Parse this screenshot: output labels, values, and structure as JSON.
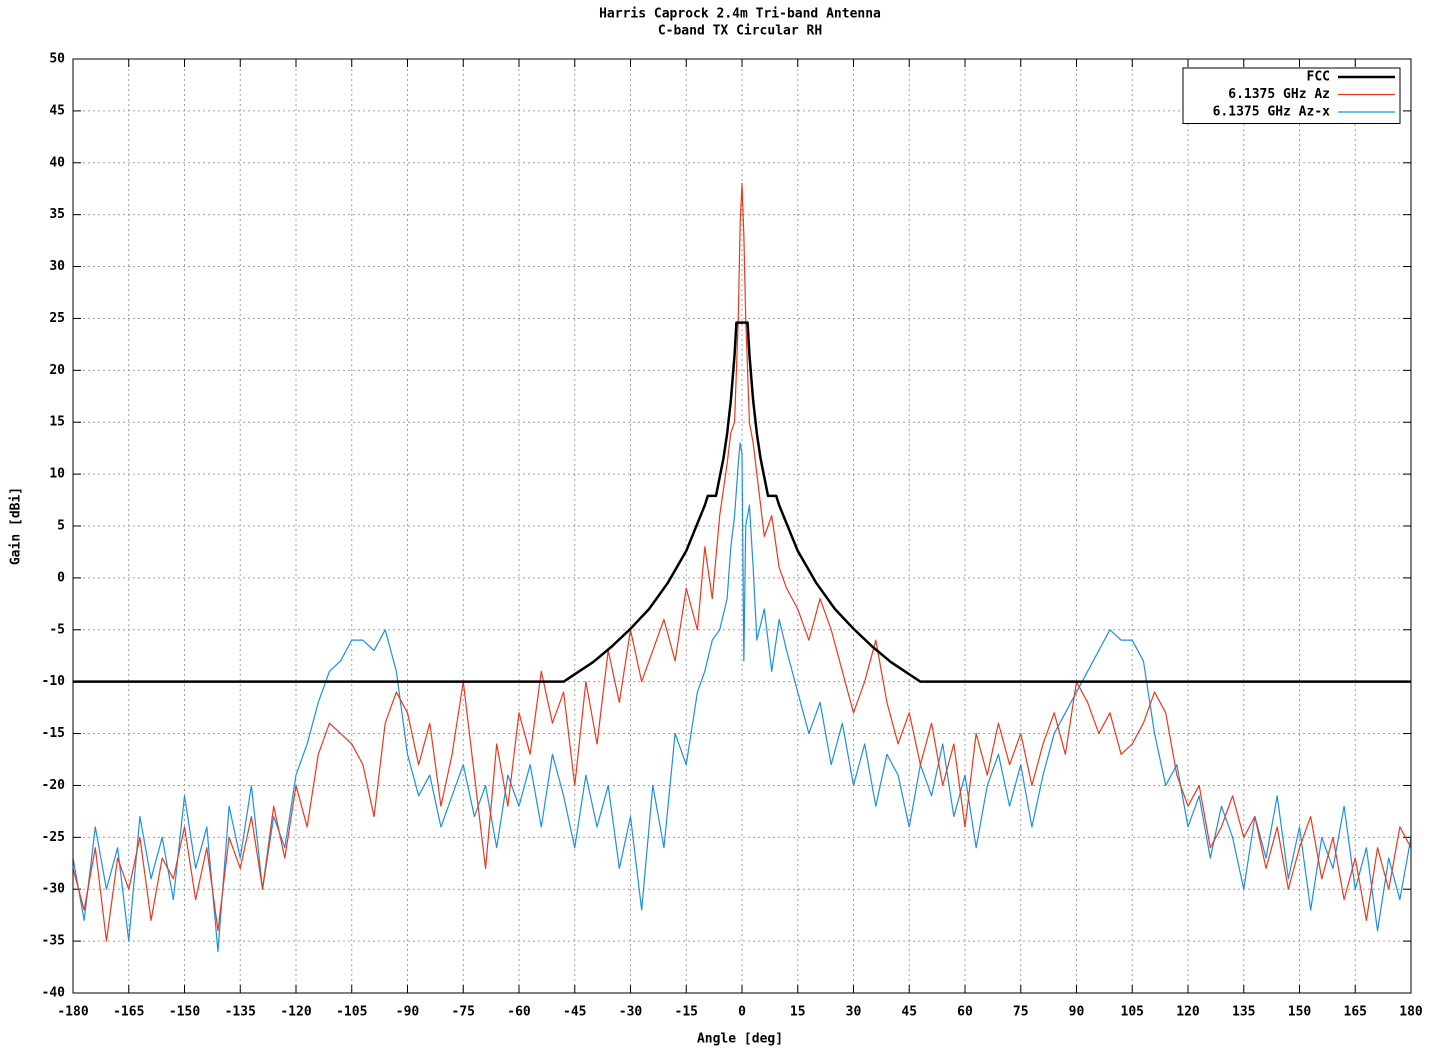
{
  "chart_data": {
    "type": "line",
    "title": "Harris Caprock 2.4m Tri-band Antenna",
    "subtitle": "C-band TX Circular RH",
    "x_label": "Angle [deg]",
    "y_label": "Gain [dBi]",
    "xlim": [
      -180,
      180
    ],
    "ylim": [
      -40,
      50
    ],
    "xticks": [
      -180,
      -165,
      -150,
      -135,
      -120,
      -105,
      -90,
      -75,
      -60,
      -45,
      -30,
      -15,
      0,
      15,
      30,
      45,
      60,
      75,
      90,
      105,
      120,
      135,
      150,
      165,
      180
    ],
    "yticks": [
      -40,
      -35,
      -30,
      -25,
      -20,
      -15,
      -10,
      -5,
      0,
      5,
      10,
      15,
      20,
      25,
      30,
      35,
      40,
      45,
      50
    ],
    "grid": true,
    "legend": "top-right",
    "x": [
      -180,
      -177,
      -174,
      -171,
      -168,
      -165,
      -162,
      -159,
      -156,
      -153,
      -150,
      -147,
      -144,
      -141,
      -138,
      -135,
      -132,
      -129,
      -126,
      -123,
      -120,
      -117,
      -114,
      -111,
      -108,
      -105,
      -102,
      -99,
      -96,
      -93,
      -90,
      -87,
      -84,
      -81,
      -78,
      -75,
      -72,
      -69,
      -66,
      -63,
      -60,
      -57,
      -54,
      -51,
      -48,
      -45,
      -42,
      -39,
      -36,
      -33,
      -30,
      -27,
      -24,
      -21,
      -18,
      -15,
      -12,
      -10,
      -8,
      -6,
      -4,
      -3,
      -2,
      -1,
      -0.5,
      0,
      0.5,
      1,
      2,
      3,
      4,
      6,
      8,
      10,
      12,
      15,
      18,
      21,
      24,
      27,
      30,
      33,
      36,
      39,
      42,
      45,
      48,
      51,
      54,
      57,
      60,
      63,
      66,
      69,
      72,
      75,
      78,
      81,
      84,
      87,
      90,
      93,
      96,
      99,
      102,
      105,
      108,
      111,
      114,
      117,
      120,
      123,
      126,
      129,
      132,
      135,
      138,
      141,
      144,
      147,
      150,
      153,
      156,
      159,
      162,
      165,
      168,
      171,
      174,
      177,
      180
    ],
    "series": [
      {
        "name": "FCC",
        "color": "#000000",
        "width": 2.5,
        "x": [
          -180,
          -48,
          -40,
          -35,
          -30,
          -25,
          -20,
          -15,
          -10,
          -9.2,
          -7,
          -5,
          -4,
          -3,
          -2,
          -1.5,
          1.5,
          2,
          3,
          4,
          5,
          7,
          9.2,
          10,
          15,
          20,
          25,
          30,
          35,
          40,
          48,
          180
        ],
        "values": [
          -10,
          -10,
          -8.1,
          -6.6,
          -4.9,
          -3,
          -0.5,
          2.6,
          7,
          7.9,
          7.9,
          11.5,
          13.9,
          17.1,
          21.5,
          24.6,
          24.6,
          21.5,
          17.1,
          13.9,
          11.5,
          7.9,
          7.9,
          7,
          2.6,
          -0.5,
          -3,
          -4.9,
          -6.6,
          -8.1,
          -10,
          -10
        ]
      },
      {
        "name": "6.1375 GHz Az",
        "color": "#e8391e",
        "width": 1.2,
        "values": [
          -28,
          -32,
          -26,
          -35,
          -27,
          -30,
          -25,
          -33,
          -27,
          -29,
          -24,
          -31,
          -26,
          -34,
          -25,
          -28,
          -23,
          -30,
          -22,
          -27,
          -20,
          -24,
          -17,
          -14,
          -15,
          -16,
          -18,
          -23,
          -14,
          -11,
          -13,
          -18,
          -14,
          -22,
          -17,
          -10,
          -19,
          -28,
          -16,
          -22,
          -13,
          -17,
          -9,
          -14,
          -11,
          -20,
          -10,
          -16,
          -7,
          -12,
          -5,
          -10,
          -7,
          -4,
          -8,
          -1,
          -5,
          3,
          -2,
          6,
          11,
          14,
          15,
          25,
          34,
          38,
          33,
          25,
          15,
          13,
          10,
          4,
          6,
          1,
          -1,
          -3,
          -6,
          -2,
          -5,
          -9,
          -13,
          -10,
          -6,
          -12,
          -16,
          -13,
          -18,
          -14,
          -20,
          -16,
          -24,
          -15,
          -19,
          -14,
          -18,
          -15,
          -20,
          -16,
          -13,
          -17,
          -10,
          -12,
          -15,
          -13,
          -17,
          -16,
          -14,
          -11,
          -13,
          -19,
          -22,
          -20,
          -26,
          -24,
          -21,
          -25,
          -23,
          -28,
          -24,
          -30,
          -26,
          -23,
          -29,
          -25,
          -31,
          -27,
          -33,
          -26,
          -30,
          -24,
          -26
        ]
      },
      {
        "name": "6.1375 GHz Az-x",
        "color": "#1e8fe0",
        "width": 1.2,
        "values": [
          -27,
          -33,
          -24,
          -30,
          -26,
          -35,
          -23,
          -29,
          -25,
          -31,
          -21,
          -28,
          -24,
          -36,
          -22,
          -27,
          -20,
          -30,
          -23,
          -26,
          -19,
          -16,
          -12,
          -9,
          -8,
          -6,
          -6,
          -7,
          -5,
          -9,
          -17,
          -21,
          -19,
          -24,
          -21,
          -18,
          -23,
          -20,
          -26,
          -19,
          -22,
          -18,
          -24,
          -17,
          -21,
          -26,
          -19,
          -24,
          -20,
          -28,
          -23,
          -32,
          -20,
          -26,
          -15,
          -18,
          -11,
          -9,
          -6,
          -5,
          -2,
          3,
          6,
          11,
          13,
          12,
          -8,
          5,
          7,
          1,
          -6,
          -3,
          -9,
          -4,
          -7,
          -11,
          -15,
          -12,
          -18,
          -14,
          -20,
          -16,
          -22,
          -17,
          -19,
          -24,
          -18,
          -21,
          -16,
          -23,
          -19,
          -26,
          -20,
          -17,
          -22,
          -18,
          -24,
          -19,
          -15,
          -13,
          -11,
          -9,
          -7,
          -5,
          -6,
          -6,
          -8,
          -15,
          -20,
          -18,
          -24,
          -21,
          -27,
          -22,
          -25,
          -30,
          -23,
          -27,
          -21,
          -29,
          -24,
          -32,
          -25,
          -28,
          -22,
          -30,
          -26,
          -34,
          -27,
          -31,
          -25
        ]
      }
    ]
  }
}
